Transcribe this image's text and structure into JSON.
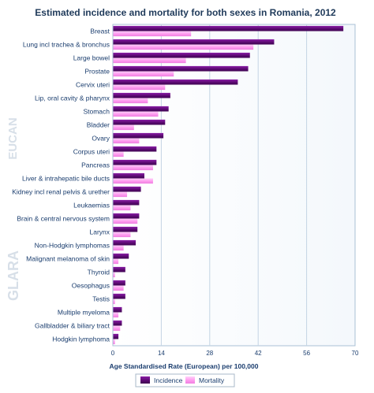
{
  "chart_data": {
    "type": "bar",
    "orientation": "horizontal",
    "title": "Estimated incidence and mortality for both sexes in Romania, 2012",
    "xlabel": "Age Standardised Rate (European) per 100,000",
    "ylabel": "",
    "xlim": [
      0,
      70
    ],
    "xticks": [
      0,
      14,
      28,
      42,
      56,
      70
    ],
    "grid": true,
    "legend_position": "bottom",
    "categories": [
      "Breast",
      "Lung incl trachea & bronchus",
      "Large bowel",
      "Prostate",
      "Cervix uteri",
      "Lip, oral cavity & pharynx",
      "Stomach",
      "Bladder",
      "Ovary",
      "Corpus uteri",
      "Pancreas",
      "Liver & intrahepatic bile ducts",
      "Kidney incl renal pelvis & urether",
      "Leukaemias",
      "Brain & central nervous system",
      "Larynx",
      "Non-Hodgkin lymphomas",
      "Malignant melanoma of skin",
      "Thyroid",
      "Oesophagus",
      "Testis",
      "Multiple myeloma",
      "Gallbladder & biliary tract",
      "Hodgkin lymphoma"
    ],
    "series": [
      {
        "name": "Incidence",
        "color": "#660a7a",
        "values": [
          66.5,
          46.5,
          39.5,
          39,
          36,
          16.5,
          16,
          15,
          14.5,
          12.5,
          12.5,
          9,
          8,
          7.5,
          7.5,
          7,
          6.5,
          4.5,
          3.5,
          3.5,
          3.5,
          2.5,
          2.5,
          1.5
        ]
      },
      {
        "name": "Mortality",
        "color": "#ff9ff2",
        "values": [
          22.5,
          40.5,
          21,
          17.5,
          15,
          10,
          13,
          6,
          7.5,
          3,
          11.5,
          11.5,
          4,
          5,
          7,
          5,
          3,
          1.5,
          0.5,
          3,
          0.5,
          1.5,
          2,
          0.5
        ]
      }
    ]
  },
  "watermark": {
    "top": "EUCAN",
    "bottom": "GLARA"
  }
}
